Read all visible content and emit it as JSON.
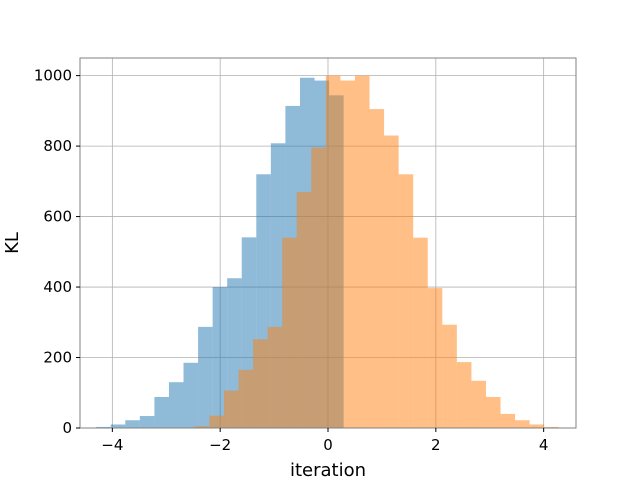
{
  "chart_data": {
    "type": "bar",
    "title": "",
    "xlabel": "iteration",
    "ylabel": "KL",
    "xlim": [
      -4.6,
      4.6
    ],
    "ylim": [
      0,
      1050
    ],
    "xticks": [
      -4,
      -2,
      0,
      2,
      4
    ],
    "xtick_labels": [
      "−4",
      "−2",
      "0",
      "2",
      "4"
    ],
    "yticks": [
      0,
      200,
      400,
      600,
      800,
      1000
    ],
    "ytick_labels": [
      "0",
      "200",
      "400",
      "600",
      "800",
      "1000"
    ],
    "grid": true,
    "legend": "none",
    "series": [
      {
        "color": "#1f77b4",
        "opacity": 0.5,
        "bin_edges": [
          -4.3,
          -4.03,
          -3.76,
          -3.49,
          -3.22,
          -2.95,
          -2.68,
          -2.41,
          -2.14,
          -1.87,
          -1.6,
          -1.33,
          -1.06,
          -0.79,
          -0.52,
          -0.25,
          0.02,
          0.29
        ],
        "values": [
          3,
          10,
          22,
          34,
          88,
          130,
          185,
          287,
          400,
          425,
          541,
          720,
          808,
          914,
          994,
          986,
          944
        ]
      },
      {
        "color": "#ff7f0e",
        "opacity": 0.5,
        "bin_edges": [
          -2.47,
          -2.2,
          -1.93,
          -1.66,
          -1.39,
          -1.12,
          -0.85,
          -0.58,
          -0.31,
          -0.04,
          0.23,
          0.5,
          0.77,
          1.04,
          1.31,
          1.58,
          1.85,
          2.12,
          2.39,
          2.66,
          2.93,
          3.2,
          3.47,
          3.74,
          4.01,
          4.28
        ],
        "values": [
          5,
          35,
          106,
          165,
          252,
          287,
          540,
          670,
          796,
          1000,
          986,
          1000,
          905,
          830,
          720,
          540,
          397,
          293,
          187,
          134,
          88,
          40,
          22,
          10,
          3
        ]
      }
    ]
  }
}
